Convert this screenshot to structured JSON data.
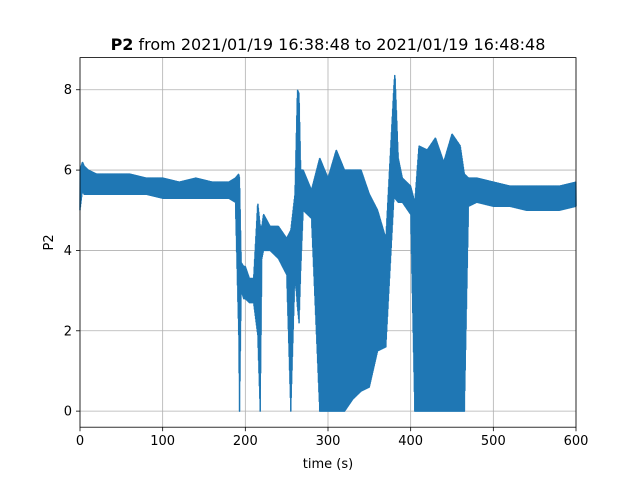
{
  "chart_data": {
    "type": "line",
    "title_bold": "P2",
    "title_rest": " from 2021/01/19 16:38:48 to 2021/01/19 16:48:48",
    "xlabel": "time (s)",
    "ylabel": "P2",
    "xlim": [
      0,
      600
    ],
    "ylim": [
      -0.4,
      8.8
    ],
    "xticks": [
      0,
      100,
      200,
      300,
      400,
      500,
      600
    ],
    "yticks": [
      0,
      2,
      4,
      6,
      8
    ],
    "grid": true,
    "color": "#1f77b4",
    "series": [
      {
        "x": [
          0,
          3,
          5,
          10,
          20,
          40,
          60,
          80,
          100,
          120,
          140,
          160,
          180,
          188,
          192,
          193,
          195,
          198,
          200,
          205,
          210,
          215,
          218,
          220,
          222,
          230,
          240,
          250,
          255,
          260,
          263,
          265,
          267,
          270,
          280,
          290,
          300,
          310,
          320,
          330,
          340,
          350,
          360,
          370,
          380,
          381,
          385,
          390,
          400,
          405,
          410,
          420,
          430,
          440,
          450,
          460,
          465,
          470,
          480,
          500,
          520,
          540,
          560,
          580,
          600
        ],
        "y_min": [
          5.0,
          5.5,
          5.4,
          5.4,
          5.4,
          5.4,
          5.4,
          5.4,
          5.3,
          5.3,
          5.3,
          5.3,
          5.3,
          5.2,
          1.9,
          0.0,
          3.0,
          2.8,
          2.8,
          2.7,
          2.7,
          1.9,
          0.0,
          3.8,
          4.0,
          4.0,
          3.8,
          3.4,
          0.0,
          3.4,
          2.6,
          2.2,
          3.5,
          5.0,
          4.8,
          0.0,
          0.0,
          0.0,
          0.0,
          0.3,
          0.5,
          0.6,
          1.5,
          1.6,
          5.4,
          5.3,
          5.2,
          5.2,
          4.9,
          0.0,
          0.0,
          0.0,
          0.0,
          0.0,
          0.0,
          0.0,
          0.0,
          5.1,
          5.2,
          5.1,
          5.1,
          5.0,
          5.0,
          5.0,
          5.1
        ],
        "y_max": [
          6.0,
          6.2,
          6.1,
          6.0,
          5.9,
          5.9,
          5.9,
          5.8,
          5.8,
          5.7,
          5.8,
          5.7,
          5.7,
          5.8,
          5.9,
          5.8,
          3.7,
          3.6,
          3.6,
          3.3,
          3.3,
          5.2,
          4.6,
          4.6,
          4.9,
          4.6,
          4.6,
          4.3,
          4.5,
          5.4,
          8.0,
          7.9,
          6.0,
          6.0,
          5.5,
          6.3,
          5.8,
          6.5,
          6.0,
          6.0,
          6.0,
          5.4,
          5.0,
          4.3,
          8.2,
          8.4,
          6.3,
          5.8,
          5.6,
          5.2,
          6.6,
          6.5,
          6.8,
          6.2,
          6.9,
          6.6,
          5.9,
          5.8,
          5.8,
          5.7,
          5.6,
          5.6,
          5.6,
          5.6,
          5.7
        ]
      }
    ]
  }
}
